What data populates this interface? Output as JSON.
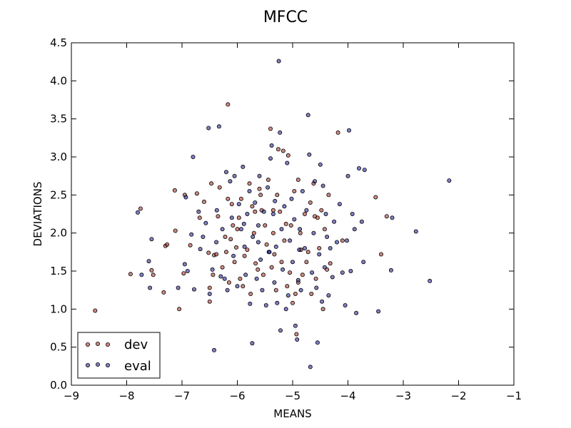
{
  "chart_data": {
    "type": "scatter",
    "title": "MFCC",
    "xlabel": "MEANS",
    "ylabel": "DEVIATIONS",
    "xlim": [
      -9,
      -1
    ],
    "ylim": [
      0.0,
      4.5
    ],
    "xticks": [
      -9,
      -8,
      -7,
      -6,
      -5,
      -4,
      -3,
      -2,
      -1
    ],
    "xtick_labels": [
      "−9",
      "−8",
      "−7",
      "−6",
      "−5",
      "−4",
      "−3",
      "−2",
      "−1"
    ],
    "yticks": [
      0.0,
      0.5,
      1.0,
      1.5,
      2.0,
      2.5,
      3.0,
      3.5,
      4.0,
      4.5
    ],
    "ytick_labels": [
      "0.0",
      "0.5",
      "1.0",
      "1.5",
      "2.0",
      "2.5",
      "3.0",
      "3.5",
      "4.0",
      "4.5"
    ],
    "grid": false,
    "legend_position": "bottom-left",
    "series": [
      {
        "name": "dev",
        "color": "#b03a2e",
        "points": [
          [
            -8.57,
            0.98
          ],
          [
            -7.93,
            1.46
          ],
          [
            -7.75,
            2.32
          ],
          [
            -7.55,
            1.51
          ],
          [
            -7.52,
            1.45
          ],
          [
            -7.33,
            1.22
          ],
          [
            -7.3,
            1.83
          ],
          [
            -7.27,
            1.85
          ],
          [
            -7.13,
            2.56
          ],
          [
            -7.12,
            2.03
          ],
          [
            -7.05,
            1.0
          ],
          [
            -6.97,
            1.47
          ],
          [
            -6.95,
            2.5
          ],
          [
            -6.85,
            1.84
          ],
          [
            -6.73,
            2.52
          ],
          [
            -6.6,
            2.41
          ],
          [
            -6.52,
            1.74
          ],
          [
            -6.5,
            1.28
          ],
          [
            -6.5,
            1.1
          ],
          [
            -6.47,
            2.65
          ],
          [
            -6.44,
            1.45
          ],
          [
            -6.42,
            1.71
          ],
          [
            -6.38,
            1.72
          ],
          [
            -6.35,
            2.22
          ],
          [
            -6.32,
            2.6
          ],
          [
            -6.27,
            1.55
          ],
          [
            -6.22,
            1.95
          ],
          [
            -6.2,
            1.75
          ],
          [
            -6.17,
            3.69
          ],
          [
            -6.17,
            2.45
          ],
          [
            -6.15,
            1.35
          ],
          [
            -6.12,
            1.92
          ],
          [
            -6.1,
            2.38
          ],
          [
            -6.05,
            1.62
          ],
          [
            -6.02,
            1.81
          ],
          [
            -6.0,
            2.05
          ],
          [
            -5.97,
            2.2
          ],
          [
            -5.93,
            2.45
          ],
          [
            -5.9,
            1.3
          ],
          [
            -5.87,
            1.7
          ],
          [
            -5.82,
            1.78
          ],
          [
            -5.78,
            2.65
          ],
          [
            -5.76,
            1.2
          ],
          [
            -5.73,
            2.35
          ],
          [
            -5.7,
            2.0
          ],
          [
            -5.67,
            1.6
          ],
          [
            -5.63,
            1.52
          ],
          [
            -5.6,
            2.58
          ],
          [
            -5.56,
            2.3
          ],
          [
            -5.53,
            1.45
          ],
          [
            -5.5,
            2.1
          ],
          [
            -5.47,
            1.85
          ],
          [
            -5.44,
            2.7
          ],
          [
            -5.4,
            3.37
          ],
          [
            -5.38,
            1.55
          ],
          [
            -5.35,
            2.0
          ],
          [
            -5.33,
            1.72
          ],
          [
            -5.3,
            1.25
          ],
          [
            -5.28,
            2.5
          ],
          [
            -5.26,
            3.1
          ],
          [
            -5.23,
            2.28
          ],
          [
            -5.2,
            1.62
          ],
          [
            -5.17,
            3.08
          ],
          [
            -5.15,
            1.9
          ],
          [
            -5.12,
            2.12
          ],
          [
            -5.1,
            1.3
          ],
          [
            -5.08,
            3.02
          ],
          [
            -5.05,
            1.48
          ],
          [
            -5.03,
            2.1
          ],
          [
            -5.0,
            1.08
          ],
          [
            -4.97,
            2.55
          ],
          [
            -4.95,
            1.2
          ],
          [
            -4.93,
            0.67
          ],
          [
            -4.9,
            2.7
          ],
          [
            -4.86,
            2.0
          ],
          [
            -4.82,
            1.45
          ],
          [
            -4.78,
            2.25
          ],
          [
            -4.75,
            1.62
          ],
          [
            -4.72,
            1.75
          ],
          [
            -4.68,
            2.4
          ],
          [
            -4.66,
            1.2
          ],
          [
            -4.62,
            2.65
          ],
          [
            -4.58,
            1.4
          ],
          [
            -4.55,
            2.2
          ],
          [
            -4.52,
            1.8
          ],
          [
            -4.48,
            2.3
          ],
          [
            -4.45,
            1.0
          ],
          [
            -4.42,
            2.05
          ],
          [
            -4.38,
            1.52
          ],
          [
            -4.35,
            2.5
          ],
          [
            -4.32,
            1.6
          ],
          [
            -4.18,
            3.32
          ],
          [
            -4.1,
            1.9
          ],
          [
            -3.5,
            2.47
          ],
          [
            -3.4,
            1.72
          ],
          [
            -3.3,
            2.22
          ],
          [
            -4.9,
            1.35
          ],
          [
            -5.95,
            1.4
          ],
          [
            -6.68,
            2.2
          ],
          [
            -5.58,
            2.5
          ],
          [
            -4.6,
            2.22
          ],
          [
            -5.35,
            2.3
          ],
          [
            -4.85,
            1.78
          ],
          [
            -6.08,
            2.1
          ],
          [
            -5.68,
            2.28
          ]
        ]
      },
      {
        "name": "eval",
        "color": "#2c2c9e",
        "points": [
          [
            -7.8,
            2.27
          ],
          [
            -7.73,
            1.45
          ],
          [
            -7.6,
            1.63
          ],
          [
            -7.58,
            1.28
          ],
          [
            -7.55,
            1.92
          ],
          [
            -7.07,
            1.28
          ],
          [
            -6.95,
            1.59
          ],
          [
            -6.93,
            2.47
          ],
          [
            -6.9,
            1.5
          ],
          [
            -6.83,
            1.98
          ],
          [
            -6.8,
            3.0
          ],
          [
            -6.78,
            1.26
          ],
          [
            -6.7,
            2.28
          ],
          [
            -6.67,
            1.79
          ],
          [
            -6.62,
            1.95
          ],
          [
            -6.57,
            2.13
          ],
          [
            -6.52,
            3.38
          ],
          [
            -6.5,
            1.2
          ],
          [
            -6.45,
            1.52
          ],
          [
            -6.42,
            0.46
          ],
          [
            -6.38,
            1.88
          ],
          [
            -6.37,
            2.3
          ],
          [
            -6.33,
            3.4
          ],
          [
            -6.3,
            1.43
          ],
          [
            -6.27,
            2.05
          ],
          [
            -6.23,
            1.4
          ],
          [
            -6.2,
            2.8
          ],
          [
            -6.18,
            1.25
          ],
          [
            -6.13,
            2.68
          ],
          [
            -6.1,
            2.2
          ],
          [
            -6.07,
            1.7
          ],
          [
            -6.05,
            2.75
          ],
          [
            -6.0,
            1.3
          ],
          [
            -5.97,
            2.38
          ],
          [
            -5.93,
            2.05
          ],
          [
            -5.9,
            2.87
          ],
          [
            -5.87,
            1.82
          ],
          [
            -5.85,
            1.45
          ],
          [
            -5.82,
            2.25
          ],
          [
            -5.78,
            2.55
          ],
          [
            -5.77,
            1.07
          ],
          [
            -5.73,
            0.55
          ],
          [
            -5.72,
            1.95
          ],
          [
            -5.68,
            2.4
          ],
          [
            -5.65,
            1.4
          ],
          [
            -5.62,
            2.1
          ],
          [
            -5.6,
            2.75
          ],
          [
            -5.58,
            1.65
          ],
          [
            -5.55,
            1.25
          ],
          [
            -5.52,
            2.28
          ],
          [
            -5.48,
            1.05
          ],
          [
            -5.45,
            2.6
          ],
          [
            -5.43,
            1.75
          ],
          [
            -5.4,
            2.98
          ],
          [
            -5.38,
            3.15
          ],
          [
            -5.35,
            2.25
          ],
          [
            -5.33,
            1.35
          ],
          [
            -5.3,
            1.82
          ],
          [
            -5.28,
            1.08
          ],
          [
            -5.25,
            4.26
          ],
          [
            -5.23,
            3.32
          ],
          [
            -5.22,
            0.72
          ],
          [
            -5.2,
            2.05
          ],
          [
            -5.18,
            1.52
          ],
          [
            -5.15,
            2.35
          ],
          [
            -5.12,
            1.0
          ],
          [
            -5.1,
            2.92
          ],
          [
            -5.08,
            1.18
          ],
          [
            -5.05,
            1.9
          ],
          [
            -5.02,
            2.45
          ],
          [
            -5.0,
            1.62
          ],
          [
            -4.97,
            2.18
          ],
          [
            -4.95,
            0.78
          ],
          [
            -4.92,
            0.6
          ],
          [
            -4.9,
            1.38
          ],
          [
            -4.87,
            2.05
          ],
          [
            -4.85,
            1.25
          ],
          [
            -4.82,
            2.55
          ],
          [
            -4.78,
            1.8
          ],
          [
            -4.75,
            2.3
          ],
          [
            -4.72,
            3.55
          ],
          [
            -4.7,
            3.03
          ],
          [
            -4.68,
            0.24
          ],
          [
            -4.65,
            1.48
          ],
          [
            -4.62,
            2.0
          ],
          [
            -4.6,
            2.68
          ],
          [
            -4.57,
            1.28
          ],
          [
            -4.55,
            0.56
          ],
          [
            -4.52,
            1.72
          ],
          [
            -4.5,
            2.9
          ],
          [
            -4.47,
            1.1
          ],
          [
            -4.45,
            2.62
          ],
          [
            -4.42,
            1.55
          ],
          [
            -4.4,
            2.25
          ],
          [
            -4.38,
            1.95
          ],
          [
            -4.35,
            1.18
          ],
          [
            -4.32,
            1.8
          ],
          [
            -4.28,
            1.42
          ],
          [
            -4.25,
            2.15
          ],
          [
            -4.2,
            1.88
          ],
          [
            -4.15,
            2.38
          ],
          [
            -4.1,
            1.48
          ],
          [
            -4.05,
            1.05
          ],
          [
            -4.02,
            1.9
          ],
          [
            -4.0,
            2.75
          ],
          [
            -3.98,
            3.35
          ],
          [
            -3.95,
            1.5
          ],
          [
            -3.92,
            2.25
          ],
          [
            -3.88,
            2.05
          ],
          [
            -3.85,
            0.95
          ],
          [
            -3.8,
            2.85
          ],
          [
            -3.75,
            2.15
          ],
          [
            -3.72,
            1.62
          ],
          [
            -3.7,
            2.83
          ],
          [
            -3.45,
            0.97
          ],
          [
            -3.22,
            1.51
          ],
          [
            -3.2,
            2.2
          ],
          [
            -2.77,
            2.02
          ],
          [
            -2.52,
            1.37
          ],
          [
            -2.17,
            2.69
          ],
          [
            -5.42,
            1.75
          ],
          [
            -5.88,
            2.12
          ],
          [
            -5.32,
            2.42
          ],
          [
            -4.88,
            1.78
          ],
          [
            -5.62,
            1.88
          ]
        ]
      }
    ]
  }
}
